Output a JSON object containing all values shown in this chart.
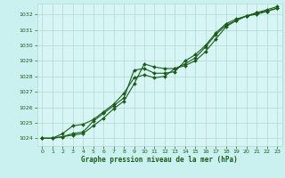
{
  "title": "Graphe pression niveau de la mer (hPa)",
  "bg_color": "#caf0f0",
  "plot_bg_color": "#d8f5f5",
  "grid_color": "#b0d8d0",
  "line_color": "#1a5c1a",
  "marker_color": "#1a5c1a",
  "xlim": [
    -0.5,
    23.5
  ],
  "ylim": [
    1023.5,
    1032.7
  ],
  "yticks": [
    1024,
    1025,
    1026,
    1027,
    1028,
    1029,
    1030,
    1031,
    1032
  ],
  "xticks": [
    0,
    1,
    2,
    3,
    4,
    5,
    6,
    7,
    8,
    9,
    10,
    11,
    12,
    13,
    14,
    15,
    16,
    17,
    18,
    19,
    20,
    21,
    22,
    23
  ],
  "line1": [
    1024.0,
    1024.0,
    1024.1,
    1024.3,
    1024.4,
    1025.1,
    1025.6,
    1026.1,
    1026.6,
    1028.4,
    1028.5,
    1028.2,
    1028.2,
    1028.3,
    1029.0,
    1029.4,
    1030.0,
    1030.8,
    1031.4,
    1031.7,
    1031.9,
    1032.1,
    1032.2,
    1032.4
  ],
  "line2": [
    1024.0,
    1024.0,
    1024.3,
    1024.8,
    1024.9,
    1025.2,
    1025.7,
    1026.2,
    1026.9,
    1027.9,
    1028.1,
    1027.9,
    1028.0,
    1028.5,
    1028.7,
    1029.0,
    1029.6,
    1030.4,
    1031.2,
    1031.6,
    1031.9,
    1032.1,
    1032.3,
    1032.5
  ],
  "line3": [
    1024.0,
    1024.0,
    1024.1,
    1024.2,
    1024.3,
    1024.8,
    1025.3,
    1025.9,
    1026.4,
    1027.5,
    1028.8,
    1028.6,
    1028.5,
    1028.5,
    1028.8,
    1029.2,
    1029.9,
    1030.7,
    1031.3,
    1031.6,
    1031.9,
    1032.0,
    1032.2,
    1032.4
  ]
}
